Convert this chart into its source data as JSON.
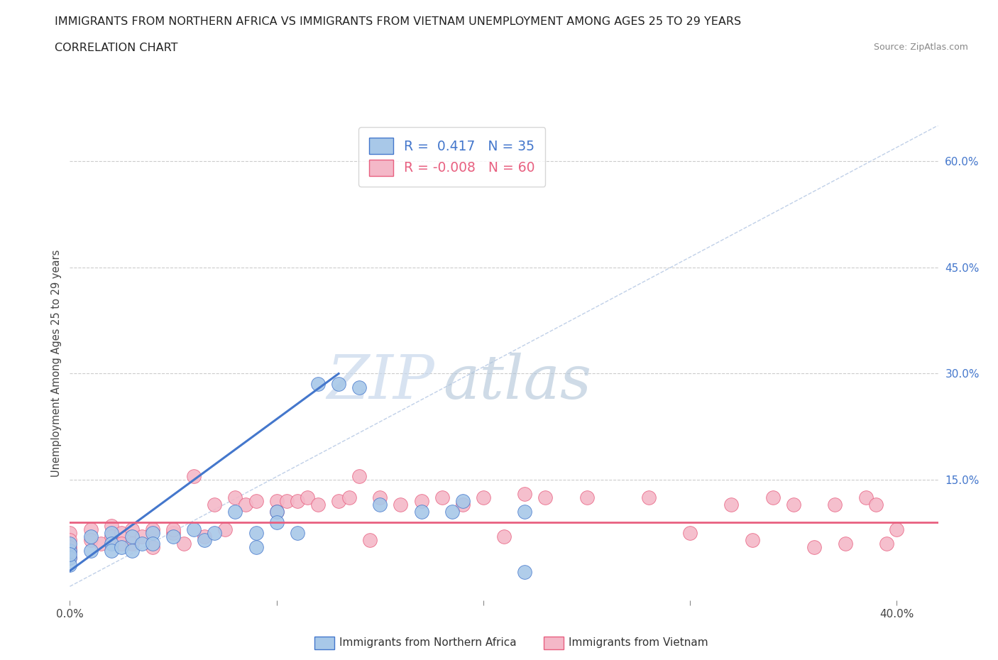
{
  "title_line1": "IMMIGRANTS FROM NORTHERN AFRICA VS IMMIGRANTS FROM VIETNAM UNEMPLOYMENT AMONG AGES 25 TO 29 YEARS",
  "title_line2": "CORRELATION CHART",
  "source_text": "Source: ZipAtlas.com",
  "ylabel": "Unemployment Among Ages 25 to 29 years",
  "xlim": [
    0.0,
    0.42
  ],
  "ylim": [
    -0.02,
    0.65
  ],
  "r1": 0.417,
  "n1": 35,
  "r2": -0.008,
  "n2": 60,
  "color_blue": "#a8c8e8",
  "color_pink": "#f4b8c8",
  "color_blue_dark": "#4477cc",
  "color_pink_dark": "#e86080",
  "color_diag": "#c0d0e8",
  "grid_color": "#cccccc",
  "bg_color": "#ffffff",
  "blue_points_x": [
    0.0,
    0.0,
    0.0,
    0.0,
    0.0,
    0.01,
    0.01,
    0.02,
    0.02,
    0.02,
    0.025,
    0.03,
    0.03,
    0.035,
    0.04,
    0.04,
    0.05,
    0.06,
    0.065,
    0.07,
    0.08,
    0.09,
    0.09,
    0.1,
    0.1,
    0.11,
    0.12,
    0.13,
    0.14,
    0.15,
    0.17,
    0.185,
    0.19,
    0.22,
    0.22
  ],
  "blue_points_y": [
    0.05,
    0.04,
    0.03,
    0.06,
    0.045,
    0.07,
    0.05,
    0.075,
    0.06,
    0.05,
    0.055,
    0.07,
    0.05,
    0.06,
    0.075,
    0.06,
    0.07,
    0.08,
    0.065,
    0.075,
    0.105,
    0.075,
    0.055,
    0.105,
    0.09,
    0.075,
    0.285,
    0.285,
    0.28,
    0.115,
    0.105,
    0.105,
    0.12,
    0.02,
    0.105
  ],
  "pink_points_x": [
    0.0,
    0.0,
    0.0,
    0.0,
    0.0,
    0.01,
    0.01,
    0.015,
    0.02,
    0.02,
    0.025,
    0.025,
    0.03,
    0.03,
    0.035,
    0.04,
    0.04,
    0.05,
    0.05,
    0.055,
    0.06,
    0.065,
    0.07,
    0.075,
    0.08,
    0.085,
    0.09,
    0.1,
    0.1,
    0.105,
    0.11,
    0.115,
    0.12,
    0.13,
    0.135,
    0.14,
    0.145,
    0.15,
    0.16,
    0.17,
    0.18,
    0.19,
    0.2,
    0.21,
    0.22,
    0.23,
    0.25,
    0.28,
    0.3,
    0.32,
    0.33,
    0.34,
    0.35,
    0.36,
    0.37,
    0.375,
    0.385,
    0.39,
    0.395,
    0.4
  ],
  "pink_points_y": [
    0.075,
    0.065,
    0.055,
    0.05,
    0.04,
    0.08,
    0.065,
    0.06,
    0.085,
    0.07,
    0.075,
    0.06,
    0.08,
    0.06,
    0.07,
    0.08,
    0.055,
    0.075,
    0.08,
    0.06,
    0.155,
    0.07,
    0.115,
    0.08,
    0.125,
    0.115,
    0.12,
    0.12,
    0.105,
    0.12,
    0.12,
    0.125,
    0.115,
    0.12,
    0.125,
    0.155,
    0.065,
    0.125,
    0.115,
    0.12,
    0.125,
    0.115,
    0.125,
    0.07,
    0.13,
    0.125,
    0.125,
    0.125,
    0.075,
    0.115,
    0.065,
    0.125,
    0.115,
    0.055,
    0.115,
    0.06,
    0.125,
    0.115,
    0.06,
    0.08
  ],
  "blue_line_x": [
    0.0,
    0.13
  ],
  "blue_line_y": [
    0.022,
    0.3
  ],
  "pink_line_y": 0.09
}
